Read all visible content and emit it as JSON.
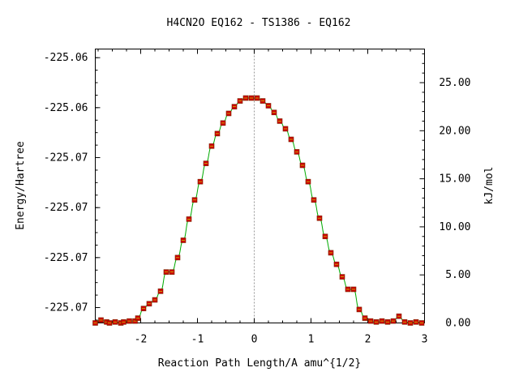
{
  "chart_data": {
    "type": "line",
    "title": "H4CN2O    EQ162 - TS1386 - EQ162",
    "xlabel": "Reaction Path Length/A amu^{1/2}",
    "ylabel": "Energy/Hartree",
    "ylabel_right": "kJ/mol",
    "xlim": [
      -2.8,
      3.0
    ],
    "ylim_kj": [
      0.0,
      28.5
    ],
    "x_ticks": [
      {
        "value": -2,
        "label": "-2"
      },
      {
        "value": -1,
        "label": "-1"
      },
      {
        "value": 0,
        "label": "0"
      },
      {
        "value": 1,
        "label": "1"
      },
      {
        "value": 2,
        "label": "2"
      },
      {
        "value": 3,
        "label": "3"
      }
    ],
    "y_left_ticks": [
      {
        "value_kj": 1.6,
        "label": "-225.07"
      },
      {
        "value_kj": 6.8,
        "label": "-225.07"
      },
      {
        "value_kj": 12.0,
        "label": "-225.07"
      },
      {
        "value_kj": 17.2,
        "label": "-225.07"
      },
      {
        "value_kj": 22.4,
        "label": "-225.06"
      },
      {
        "value_kj": 27.6,
        "label": "-225.06"
      }
    ],
    "y_right_ticks": [
      {
        "value": 0.0,
        "label": "0.00"
      },
      {
        "value": 5.0,
        "label": "5.00"
      },
      {
        "value": 10.0,
        "label": "10.00"
      },
      {
        "value": 15.0,
        "label": "15.00"
      },
      {
        "value": 20.0,
        "label": "20.00"
      },
      {
        "value": 25.0,
        "label": "25.00"
      }
    ],
    "series": [
      {
        "color": "#00aa00",
        "marker_color": "#cc0000",
        "x": [
          -2.8,
          -2.7,
          -2.6,
          -2.55,
          -2.45,
          -2.35,
          -2.3,
          -2.2,
          -2.1,
          -2.05,
          -1.95,
          -1.85,
          -1.75,
          -1.65,
          -1.55,
          -1.45,
          -1.35,
          -1.25,
          -1.15,
          -1.05,
          -0.95,
          -0.85,
          -0.75,
          -0.65,
          -0.55,
          -0.45,
          -0.35,
          -0.25,
          -0.15,
          -0.05,
          0.05,
          0.15,
          0.25,
          0.35,
          0.45,
          0.55,
          0.65,
          0.75,
          0.85,
          0.95,
          1.05,
          1.15,
          1.25,
          1.35,
          1.45,
          1.55,
          1.65,
          1.75,
          1.85,
          1.95,
          2.05,
          2.15,
          2.25,
          2.35,
          2.45,
          2.55,
          2.65,
          2.75,
          2.85,
          2.95
        ],
        "y": [
          0.0,
          0.3,
          0.1,
          0.0,
          0.1,
          0.0,
          0.1,
          0.2,
          0.2,
          0.5,
          1.5,
          2.0,
          2.4,
          3.3,
          5.3,
          5.3,
          6.8,
          8.6,
          10.8,
          12.8,
          14.7,
          16.6,
          18.4,
          19.7,
          20.8,
          21.8,
          22.5,
          23.1,
          23.4,
          23.4,
          23.4,
          23.1,
          22.6,
          21.9,
          21.0,
          20.2,
          19.1,
          17.8,
          16.4,
          14.7,
          12.8,
          10.9,
          9.0,
          7.3,
          6.1,
          4.8,
          3.5,
          3.5,
          1.4,
          0.5,
          0.2,
          0.1,
          0.2,
          0.1,
          0.2,
          0.7,
          0.1,
          0.0,
          0.1,
          0.0
        ]
      }
    ],
    "zero_line_x": 0,
    "grid": false
  }
}
